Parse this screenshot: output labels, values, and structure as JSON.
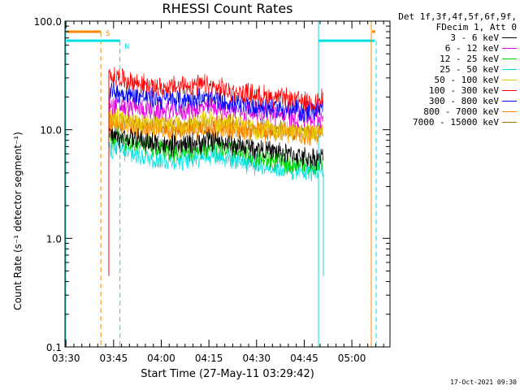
{
  "chart_data": {
    "type": "line",
    "title": "RHESSI Count Rates",
    "xlabel": "Start Time (27-May-11 03:29:42)",
    "ylabel": "Count Rate (s⁻¹ detector segment⁻¹)",
    "y_scale": "log",
    "ylim": [
      0.1,
      100.0
    ],
    "xlim": [
      "03:29:42",
      "05:12:00"
    ],
    "x_ticks": [
      "03:30",
      "03:45",
      "04:00",
      "04:15",
      "04:30",
      "04:45",
      "05:00"
    ],
    "y_ticks": [
      "0.1",
      "1.0",
      "10.0",
      "100.0"
    ],
    "grid": false,
    "legend_position": "right",
    "legend_header": [
      "Det 1f,3f,4f,5f,6f,9f,",
      "FDecim 1, Att 0"
    ],
    "x": [
      "03:44",
      "03:47",
      "03:50",
      "03:55",
      "04:00",
      "04:05",
      "04:10",
      "04:15",
      "04:20",
      "04:25",
      "04:30",
      "04:35",
      "04:40",
      "04:45",
      "04:48",
      "04:51"
    ],
    "series": [
      {
        "name": "3 - 6 keV",
        "color": "#000000",
        "values": [
          9.0,
          8.5,
          8.5,
          7.8,
          7.2,
          7.0,
          7.5,
          8.0,
          7.5,
          7.0,
          6.8,
          6.3,
          6.0,
          5.6,
          5.4,
          5.6
        ]
      },
      {
        "name": "6 - 12 keV",
        "color": "#e000e0",
        "values": [
          17.0,
          16.5,
          16.0,
          15.5,
          15.0,
          15.0,
          15.5,
          16.0,
          15.5,
          15.0,
          14.5,
          14.0,
          13.5,
          13.0,
          12.8,
          13.0
        ]
      },
      {
        "name": "12 - 25 keV",
        "color": "#00d000",
        "values": [
          8.5,
          8.0,
          7.5,
          7.0,
          6.5,
          6.3,
          6.5,
          7.0,
          6.5,
          6.0,
          5.5,
          5.2,
          5.0,
          4.8,
          4.7,
          5.0
        ]
      },
      {
        "name": "25 - 50 keV",
        "color": "#00e0e0",
        "values": [
          7.0,
          6.5,
          6.0,
          5.6,
          5.2,
          5.2,
          5.6,
          6.0,
          5.6,
          5.2,
          4.8,
          4.5,
          4.3,
          4.2,
          4.1,
          4.3
        ]
      },
      {
        "name": "50 - 100 keV",
        "color": "#e8c800",
        "values": [
          13.0,
          12.5,
          12.0,
          11.5,
          11.2,
          11.0,
          11.5,
          12.0,
          11.5,
          11.0,
          10.5,
          10.0,
          9.8,
          9.5,
          9.4,
          9.6
        ]
      },
      {
        "name": "100 - 300 keV",
        "color": "#ff0000",
        "values": [
          32.0,
          30.0,
          28.0,
          26.0,
          24.0,
          25.0,
          26.0,
          25.0,
          23.0,
          22.0,
          21.0,
          20.0,
          19.0,
          18.5,
          18.0,
          19.0
        ]
      },
      {
        "name": "300 - 800 keV",
        "color": "#0000ff",
        "values": [
          23.0,
          22.0,
          21.0,
          20.0,
          19.0,
          19.0,
          19.5,
          19.0,
          18.0,
          17.0,
          16.5,
          16.0,
          15.5,
          15.0,
          15.0,
          15.5
        ]
      },
      {
        "name": "800 - 7000 keV",
        "color": "#ff8800",
        "values": [
          11.5,
          11.0,
          10.8,
          10.5,
          10.2,
          10.0,
          10.2,
          10.5,
          10.2,
          10.0,
          9.8,
          9.5,
          9.3,
          9.0,
          8.9,
          9.0
        ]
      },
      {
        "name": "7000 - 15000 keV",
        "color": "#b07000",
        "values": [
          12.0,
          11.8,
          11.5,
          11.0,
          10.8,
          10.5,
          10.8,
          11.0,
          10.8,
          10.5,
          10.2,
          10.0,
          9.8,
          9.6,
          9.5,
          9.6
        ]
      }
    ],
    "annotations": [
      {
        "text": "S",
        "color": "#ff8800",
        "x": "03:41"
      },
      {
        "text": "N",
        "color": "#00e0e0",
        "x": "03:47"
      }
    ],
    "footer": "17-Oct-2021 09:30"
  }
}
